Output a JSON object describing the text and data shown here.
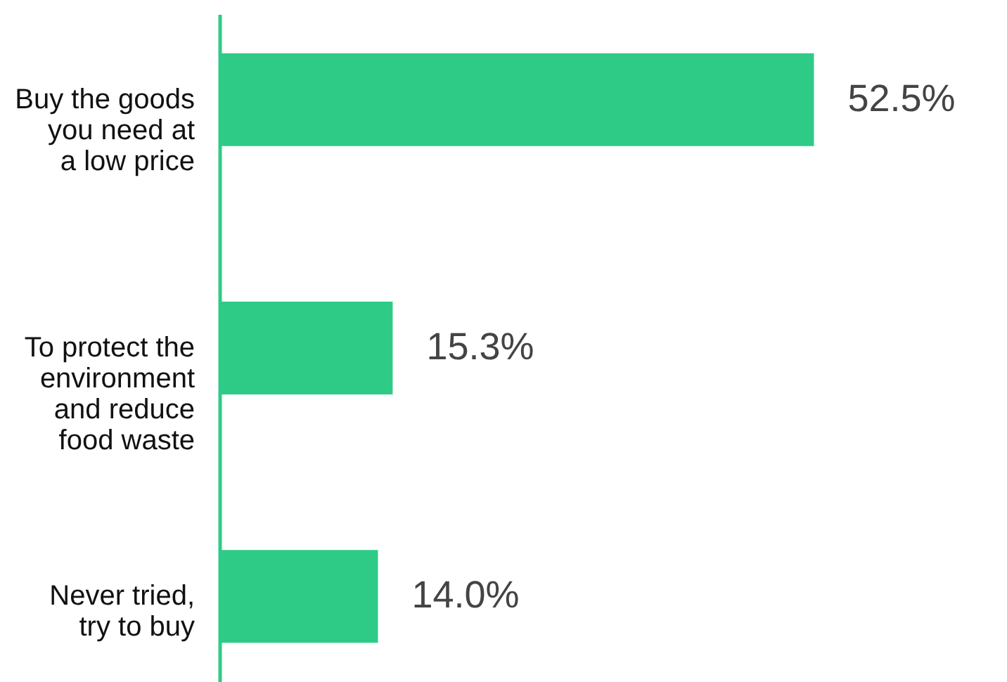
{
  "chart_data": {
    "type": "bar",
    "orientation": "horizontal",
    "categories": [
      "Buy the goods\nyou need at\na low price",
      "To protect the\nenvironment\nand reduce\nfood waste",
      "Never tried,\ntry to buy"
    ],
    "values": [
      52.5,
      15.3,
      14.0
    ],
    "color": "#2ecb87",
    "value_labels": [
      "52.5%",
      "15.3%",
      "14.0%"
    ]
  }
}
